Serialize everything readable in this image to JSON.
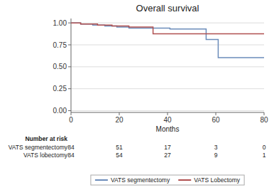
{
  "chart_data": {
    "type": "step",
    "title": "Overall survival",
    "x_label": "Months",
    "xlim": [
      0,
      80
    ],
    "ylim": [
      -0.02,
      1.05
    ],
    "xticks": [
      0,
      20,
      40,
      60,
      80
    ],
    "yticks": [
      {
        "value": 0.0,
        "label": "0.00"
      },
      {
        "value": 0.25,
        "label": "0.25"
      },
      {
        "value": 0.5,
        "label": "0.50"
      },
      {
        "value": 0.75,
        "label": "0.75"
      },
      {
        "value": 1.0,
        "label": "1.00"
      }
    ],
    "grid": "y",
    "legend": "bottom",
    "series": [
      {
        "name": "VATS segmentectomy",
        "color": "#6b8cba",
        "x": [
          0,
          4,
          6,
          9,
          11,
          14,
          17,
          19,
          22,
          24,
          27,
          30,
          33,
          36,
          39,
          41,
          44,
          54,
          56,
          59,
          61,
          80
        ],
        "values": [
          1.0,
          0.988,
          0.988,
          0.976,
          0.976,
          0.964,
          0.964,
          0.952,
          0.952,
          0.94,
          0.94,
          0.94,
          0.94,
          0.94,
          0.94,
          0.93,
          0.93,
          0.93,
          0.81,
          0.81,
          0.605,
          0.605
        ]
      },
      {
        "name": "VATS Lobectomy",
        "color": "#b05050",
        "x": [
          0,
          4,
          7,
          11,
          14,
          17,
          21,
          24,
          29,
          34,
          39,
          54,
          80
        ],
        "values": [
          1.0,
          0.988,
          0.988,
          0.976,
          0.976,
          0.964,
          0.964,
          0.952,
          0.952,
          0.875,
          0.875,
          0.875,
          0.875
        ]
      }
    ],
    "risk_table": {
      "title": "Number at risk",
      "rows": [
        {
          "label": "VATS segmentectomy",
          "times": [
            0,
            20,
            40,
            60,
            80
          ],
          "values": [
            84,
            51,
            17,
            3,
            0
          ]
        },
        {
          "label": "VATS lobectomy",
          "times": [
            0,
            20,
            40,
            60,
            80
          ],
          "values": [
            84,
            54,
            27,
            9,
            1
          ]
        }
      ]
    }
  }
}
